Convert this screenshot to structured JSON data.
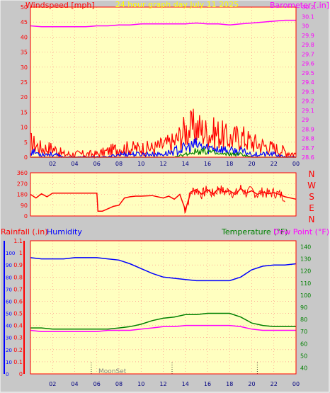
{
  "header": {
    "wind_title": "Windspeed [mph]",
    "center_title": "24 hour graph day   July 11 2025",
    "baro_title": "Barometer [.in]"
  },
  "lower_header": {
    "rain_title": "Rainfall (.in)",
    "humidity_title": "Humidity",
    "temp_title": "Temperature (°F)",
    "dew_title": "Dew Point (°F)"
  },
  "moonset_label": "MoonSet",
  "compass": [
    "N",
    "W",
    "S",
    "E",
    "N"
  ],
  "colors": {
    "plot_bg": "#ffffc0",
    "wind": "#ff0000",
    "gust": "#0000ff",
    "wind_green": "#008000",
    "barometer": "#ff00ff",
    "direction": "#ff0000",
    "humidity": "#0000ff",
    "temperature": "#008000",
    "dew_point": "#ff00ff",
    "grid": "#ff8080"
  },
  "chart_data": [
    {
      "type": "line",
      "name": "wind-barometer",
      "x_tick_labels": [
        "02",
        "04",
        "06",
        "08",
        "10",
        "12",
        "14",
        "16",
        "18",
        "20",
        "22",
        "00"
      ],
      "xlim": [
        0,
        24
      ],
      "ylabel_left": "Windspeed [mph]",
      "ylim_left": [
        0,
        50
      ],
      "yticks_left": [
        "0",
        "5",
        "10",
        "15",
        "20",
        "25",
        "30",
        "35",
        "40",
        "45",
        "50"
      ],
      "ylabel_right": "Barometer [.in]",
      "ylim_right": [
        28.6,
        30.2
      ],
      "yticks_right": [
        "28.6",
        "28.7",
        "28.8",
        "28.9",
        "29",
        "29.1",
        "29.2",
        "29.3",
        "29.4",
        "29.5",
        "29.6",
        "29.7",
        "29.8",
        "29.9",
        "30",
        "30.1",
        "30.2"
      ],
      "grid": true,
      "series": [
        {
          "name": "Barometer",
          "axis": "right",
          "x": [
            0,
            1,
            2,
            3,
            4,
            5,
            6,
            7,
            8,
            9,
            10,
            11,
            12,
            13,
            14,
            15,
            16,
            17,
            18,
            19,
            20,
            21,
            22,
            23,
            24
          ],
          "values": [
            30.0,
            29.99,
            29.99,
            29.99,
            29.99,
            29.99,
            30.0,
            30.0,
            30.01,
            30.01,
            30.02,
            30.02,
            30.02,
            30.02,
            30.02,
            30.03,
            30.02,
            30.02,
            30.01,
            30.02,
            30.03,
            30.04,
            30.05,
            30.06,
            30.06
          ]
        },
        {
          "name": "Wind Gust",
          "axis": "left",
          "x": [
            0,
            1,
            2,
            3,
            4,
            5,
            6,
            7,
            8,
            9,
            10,
            11,
            12,
            13,
            14,
            15,
            16,
            17,
            18,
            19,
            20,
            21,
            22,
            23,
            24
          ],
          "values": [
            5,
            3,
            3,
            1,
            1,
            1,
            1,
            2,
            3,
            3,
            3,
            3,
            4,
            5,
            9,
            10,
            8,
            8,
            6,
            7,
            5,
            4,
            3,
            2,
            1
          ]
        },
        {
          "name": "Wind Speed",
          "axis": "left",
          "x": [
            0,
            1,
            2,
            3,
            4,
            5,
            6,
            7,
            8,
            9,
            10,
            11,
            12,
            13,
            14,
            15,
            16,
            17,
            18,
            19,
            20,
            21,
            22,
            23,
            24
          ],
          "values": [
            2,
            1,
            1,
            0,
            0,
            0,
            0,
            0,
            1,
            1,
            1,
            1,
            1,
            2,
            3,
            4,
            3,
            3,
            2,
            2,
            1,
            1,
            1,
            0,
            0
          ]
        },
        {
          "name": "Wind Avg",
          "axis": "left",
          "x": [
            0,
            2,
            4,
            6,
            8,
            10,
            12,
            13,
            14,
            15,
            16,
            17,
            18,
            19,
            20,
            22,
            24
          ],
          "values": [
            0,
            0,
            0,
            0,
            0,
            0,
            0,
            0,
            1,
            2,
            2,
            1,
            1,
            1,
            0,
            0,
            0
          ]
        }
      ]
    },
    {
      "type": "line",
      "name": "wind-direction",
      "xlim": [
        0,
        24
      ],
      "ylim": [
        0,
        360
      ],
      "yticks": [
        "0",
        "90",
        "180",
        "270",
        "360"
      ],
      "series": [
        {
          "name": "Direction",
          "x": [
            0,
            0.5,
            1,
            1.5,
            2,
            3,
            4,
            5,
            5.5,
            6,
            6.1,
            6.5,
            7,
            7.5,
            8,
            8.5,
            9,
            9.5,
            10,
            11,
            12,
            12.5,
            13,
            13.5,
            14,
            14.5,
            15,
            15.5,
            16,
            16.5,
            17,
            17.5,
            18,
            18.5,
            19,
            19.5,
            20,
            20.5,
            21,
            21.5,
            22,
            22.5,
            23,
            24
          ],
          "values": [
            180,
            150,
            185,
            160,
            190,
            190,
            190,
            190,
            190,
            190,
            40,
            40,
            60,
            80,
            90,
            150,
            160,
            165,
            165,
            170,
            150,
            165,
            140,
            180,
            50,
            200,
            220,
            180,
            220,
            180,
            230,
            200,
            210,
            180,
            230,
            190,
            210,
            180,
            200,
            185,
            195,
            180,
            160,
            140
          ]
        }
      ]
    },
    {
      "type": "line",
      "name": "temperature-humidity",
      "x_tick_labels": [
        "02",
        "04",
        "06",
        "08",
        "10",
        "12",
        "14",
        "16",
        "18",
        "20",
        "22",
        "00"
      ],
      "xlim": [
        0,
        24
      ],
      "ylabel_left": "Rainfall (.in)",
      "ylim_left": [
        0,
        1.1
      ],
      "yticks_left": [
        "0",
        "0.1",
        "0.2",
        "0.3",
        "0.4",
        "0.5",
        "0.6",
        "0.7",
        "0.8",
        "0.9",
        "1",
        "1.1"
      ],
      "humidity_ticks": [
        "0",
        "10",
        "20",
        "30",
        "40",
        "50",
        "60",
        "70",
        "80",
        "90",
        "100"
      ],
      "ylabel_right": "Temperature (°F)",
      "ylim_right": [
        35,
        145
      ],
      "yticks_right": [
        "40",
        "50",
        "60",
        "70",
        "80",
        "90",
        "100",
        "110",
        "120",
        "130",
        "140"
      ],
      "grid": true,
      "series": [
        {
          "name": "Humidity",
          "axis": "humidity",
          "x": [
            0,
            1,
            2,
            3,
            4,
            5,
            6,
            7,
            8,
            9,
            10,
            11,
            12,
            13,
            14,
            15,
            16,
            17,
            18,
            19,
            20,
            21,
            22,
            23,
            24
          ],
          "values": [
            96,
            95,
            95,
            95,
            96,
            96,
            96,
            95,
            94,
            91,
            87,
            83,
            80,
            79,
            78,
            77,
            77,
            77,
            77,
            80,
            86,
            89,
            90,
            90,
            91
          ]
        },
        {
          "name": "Temperature",
          "axis": "right",
          "x": [
            0,
            1,
            2,
            3,
            4,
            5,
            6,
            7,
            8,
            9,
            10,
            11,
            12,
            13,
            14,
            15,
            16,
            17,
            18,
            19,
            20,
            21,
            22,
            23,
            24
          ],
          "values": [
            73,
            73,
            72,
            72,
            72,
            72,
            72,
            72,
            73,
            74,
            76,
            79,
            81,
            82,
            84,
            84,
            85,
            85,
            85,
            82,
            77,
            75,
            74,
            74,
            74
          ]
        },
        {
          "name": "Dew Point",
          "axis": "right",
          "x": [
            0,
            1,
            2,
            3,
            4,
            5,
            6,
            7,
            8,
            9,
            10,
            11,
            12,
            13,
            14,
            15,
            16,
            17,
            18,
            19,
            20,
            21,
            22,
            23,
            24
          ],
          "values": [
            71,
            70,
            70,
            70,
            70,
            70,
            70,
            71,
            71,
            71,
            72,
            73,
            74,
            74,
            75,
            75,
            75,
            75,
            75,
            74,
            72,
            71,
            71,
            71,
            71
          ]
        },
        {
          "name": "Rainfall",
          "axis": "left",
          "x": [
            0,
            24
          ],
          "values": [
            0,
            0
          ]
        }
      ],
      "moon_events_hours": [
        5.5,
        12.8,
        20.5
      ]
    }
  ]
}
